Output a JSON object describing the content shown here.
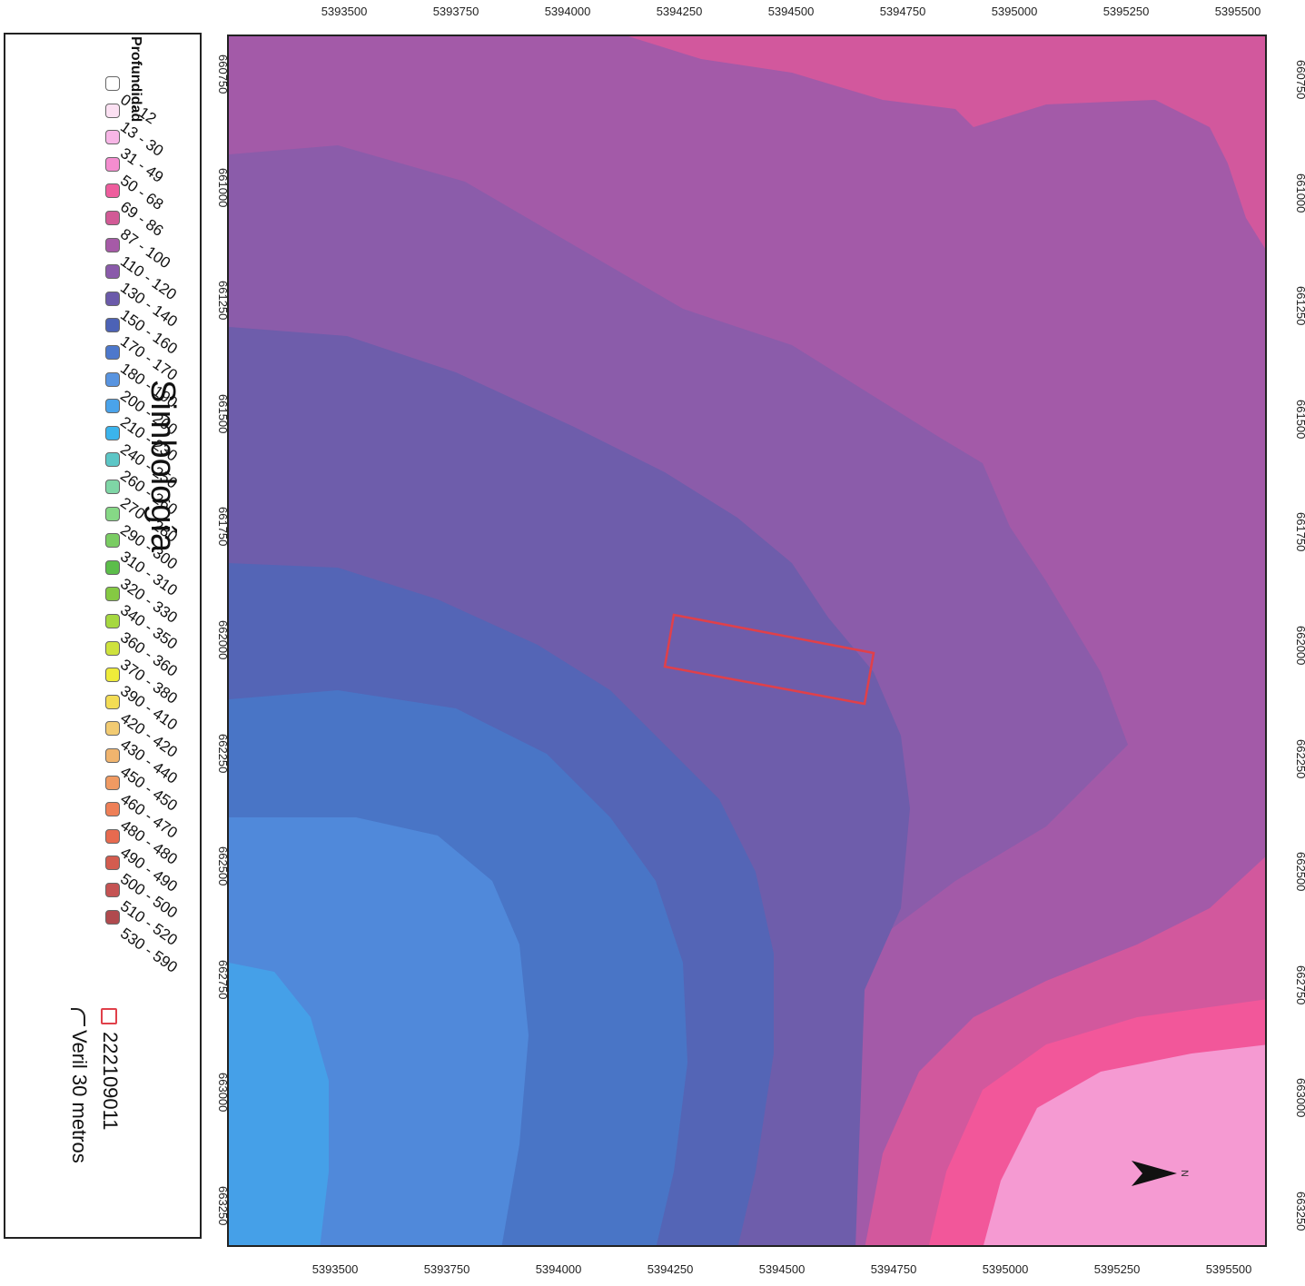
{
  "axes": {
    "x_ticks": [
      "5393500",
      "5393750",
      "5394000",
      "5394250",
      "5394500",
      "5394750",
      "5395000",
      "5395250",
      "5395500"
    ],
    "y_ticks": [
      "660750",
      "661000",
      "661250",
      "661500",
      "661750",
      "662000",
      "662250",
      "662500",
      "662750",
      "663000",
      "663250"
    ]
  },
  "legend": {
    "title": "Simbología",
    "subtitle": "Profundidad",
    "classes": [
      {
        "label": "0 - 12",
        "color": "#ffffff"
      },
      {
        "label": "13 - 30",
        "color": "#fbe0f2"
      },
      {
        "label": "31 - 49",
        "color": "#f7b6e6"
      },
      {
        "label": "50 - 68",
        "color": "#f48dcf"
      },
      {
        "label": "69 - 86",
        "color": "#ee5d9d"
      },
      {
        "label": "87 - 100",
        "color": "#d25a96"
      },
      {
        "label": "110 - 120",
        "color": "#a65aa7"
      },
      {
        "label": "130 - 140",
        "color": "#8a5aaa"
      },
      {
        "label": "150 - 160",
        "color": "#6b5aaa"
      },
      {
        "label": "170 - 170",
        "color": "#4c62b6"
      },
      {
        "label": "180 - 190",
        "color": "#4d78cc"
      },
      {
        "label": "200 - 200",
        "color": "#5894e0"
      },
      {
        "label": "210 - 230",
        "color": "#4aa3ea"
      },
      {
        "label": "240 - 250",
        "color": "#3bb4ec"
      },
      {
        "label": "260 - 260",
        "color": "#5cc6c6"
      },
      {
        "label": "270 - 280",
        "color": "#7fd6a6"
      },
      {
        "label": "290 - 300",
        "color": "#86d886"
      },
      {
        "label": "310 - 310",
        "color": "#7acc63"
      },
      {
        "label": "320 - 330",
        "color": "#5cbd4a"
      },
      {
        "label": "340 - 350",
        "color": "#85c943"
      },
      {
        "label": "360 - 360",
        "color": "#a6d840"
      },
      {
        "label": "370 - 380",
        "color": "#cee23d"
      },
      {
        "label": "390 - 410",
        "color": "#eeeb3a"
      },
      {
        "label": "420 - 420",
        "color": "#f3dc55"
      },
      {
        "label": "430 - 440",
        "color": "#f2cb72"
      },
      {
        "label": "450 - 450",
        "color": "#f0b46e"
      },
      {
        "label": "460 - 470",
        "color": "#f09a62"
      },
      {
        "label": "480 - 480",
        "color": "#ee7f57"
      },
      {
        "label": "490 - 490",
        "color": "#e76a4f"
      },
      {
        "label": "500 - 500",
        "color": "#d35c4f"
      },
      {
        "label": "510 - 520",
        "color": "#c55353"
      },
      {
        "label": "530 - 590",
        "color": "#b04a4e"
      }
    ],
    "boundary": {
      "label": "222109011",
      "color": "#e0404a"
    },
    "isobath": {
      "label": "Veril 30 metros"
    }
  },
  "map": {
    "background_color": "#a35aa8",
    "zones": {
      "deep_blue": "#8b5caa",
      "blue1": "#6e5dab",
      "blue2": "#5465b6",
      "blue3": "#4975c6",
      "blue4": "#5089da",
      "blue5": "#45a0e8",
      "pink1": "#d2589d",
      "pink2": "#f2579a",
      "pink3": "#f59ad2"
    }
  },
  "north_arrow": {
    "label": "N"
  }
}
